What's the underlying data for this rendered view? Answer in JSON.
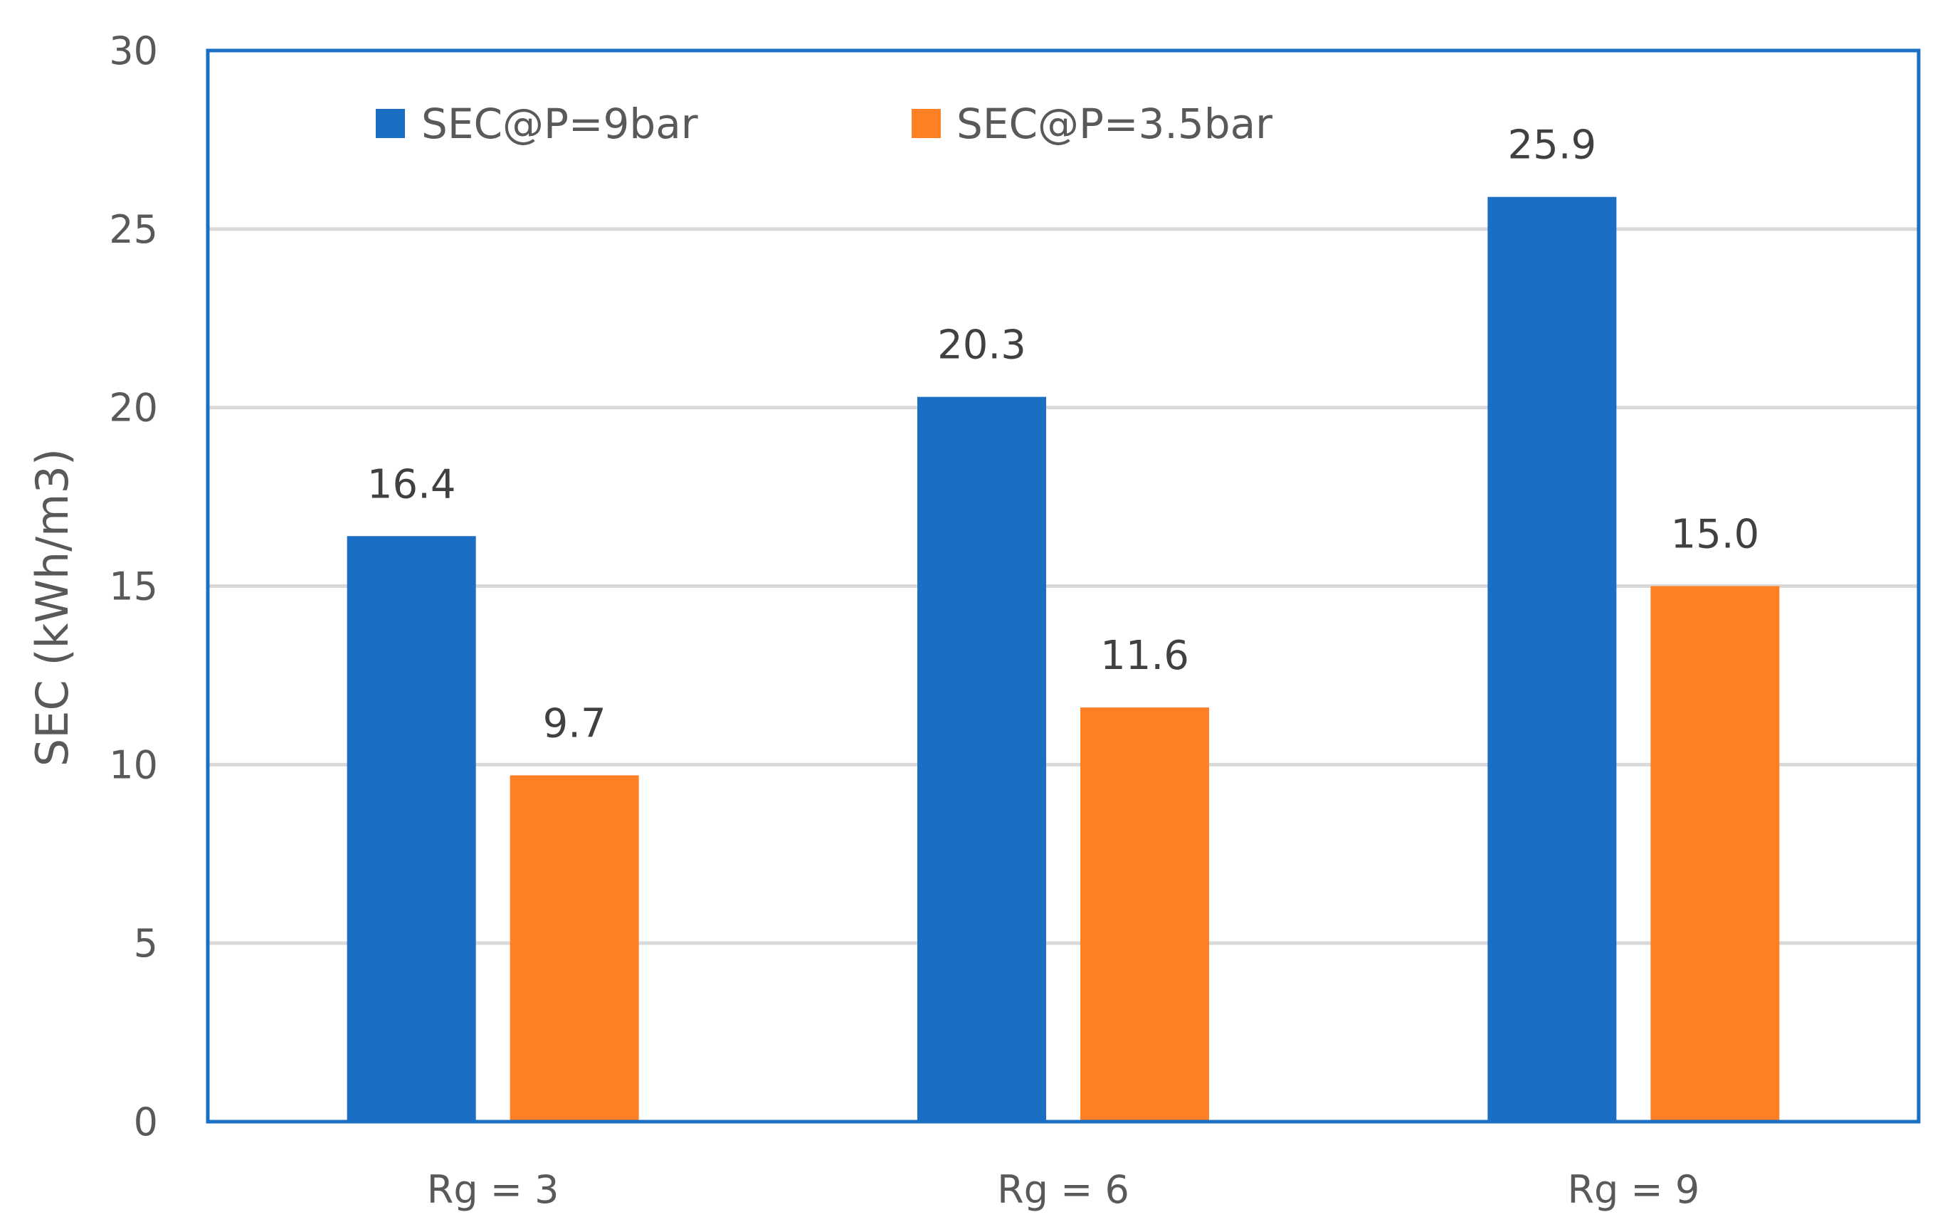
{
  "chart_data": {
    "type": "bar",
    "categories": [
      "Rg = 3",
      "Rg = 6",
      "Rg = 9"
    ],
    "series": [
      {
        "name": "SEC@P=9bar",
        "values": [
          16.4,
          20.3,
          25.9
        ],
        "labels": [
          "16.4",
          "20.3",
          "25.9"
        ],
        "color": "#1A6FC4"
      },
      {
        "name": "SEC@P=3.5bar",
        "values": [
          9.7,
          11.6,
          15.0
        ],
        "labels": [
          "9.7",
          "11.6",
          "15.0"
        ],
        "color": "#FF7F24"
      }
    ],
    "ylabel": "SEC  (kWh/m3)",
    "xlabel": "",
    "ylim": [
      0,
      30
    ],
    "yticks": [
      0,
      5,
      10,
      15,
      20,
      25,
      30
    ],
    "grid": true,
    "legend_position": "top-left",
    "frame_color": "#1A6FC4",
    "grid_color": "#D9D9D9"
  }
}
